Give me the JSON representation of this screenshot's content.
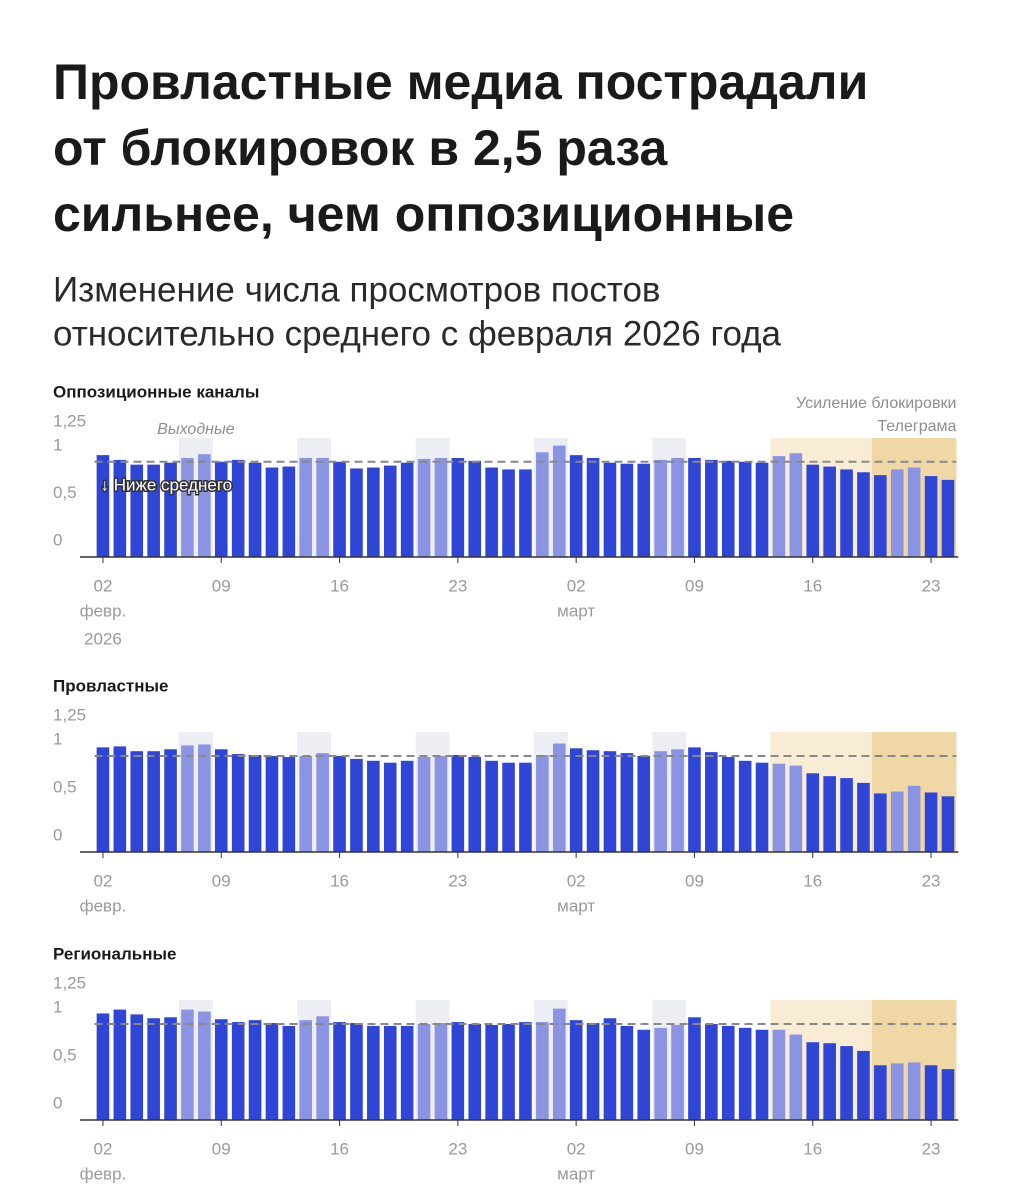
{
  "header": {
    "title_lines": [
      "Провластные медиа пострадали",
      "от блокировок в 2,5 раза",
      "сильнее, чем оппозиционные"
    ],
    "subtitle_lines": [
      "Изменение числа просмотров постов",
      "относительно среднего с февраля 2026 года"
    ]
  },
  "chart_data": [
    {
      "type": "bar",
      "title": "Оппозиционные каналы",
      "categories": [
        "02",
        null,
        null,
        null,
        null,
        null,
        null,
        "09",
        null,
        null,
        null,
        null,
        null,
        null,
        "16",
        null,
        null,
        null,
        null,
        null,
        null,
        "23",
        null,
        null,
        null,
        null,
        null,
        null,
        "02",
        null,
        null,
        null,
        null,
        null,
        null,
        "09",
        null,
        null,
        null,
        null,
        null,
        null,
        "16",
        null,
        null,
        null,
        null,
        null,
        null,
        "23",
        null
      ],
      "category_sublabels": [
        "февр.",
        null,
        null,
        null,
        null,
        null,
        null,
        null,
        null,
        null,
        null,
        null,
        null,
        null,
        null,
        null,
        null,
        null,
        null,
        null,
        null,
        null,
        null,
        null,
        null,
        null,
        null,
        null,
        "март",
        null,
        null,
        null,
        null,
        null,
        null,
        null,
        null,
        null,
        null,
        null,
        null,
        null,
        null,
        null,
        null,
        null,
        null,
        null,
        null,
        null,
        null
      ],
      "year_label": "2026",
      "values": [
        1.07,
        1.02,
        0.97,
        0.97,
        0.99,
        1.04,
        1.08,
        1.0,
        1.02,
        0.99,
        0.94,
        0.95,
        1.04,
        1.04,
        1.0,
        0.93,
        0.94,
        0.96,
        0.99,
        1.03,
        1.04,
        1.04,
        1.01,
        0.94,
        0.92,
        0.92,
        1.1,
        1.17,
        1.07,
        1.04,
        0.99,
        0.98,
        0.98,
        1.02,
        1.04,
        1.04,
        1.02,
        1.01,
        1.0,
        0.99,
        1.06,
        1.09,
        0.97,
        0.95,
        0.92,
        0.89,
        0.86,
        0.92,
        0.94,
        0.85,
        0.81
      ],
      "color": "#2f45d6",
      "weekend_color": "#8b94e3",
      "weekend_indices": [
        5,
        6,
        12,
        13,
        19,
        20,
        26,
        27,
        33,
        34,
        40,
        41,
        47,
        48
      ],
      "bands": [
        {
          "from": 5,
          "to": 6,
          "color": "#eceef4"
        },
        {
          "from": 12,
          "to": 13,
          "color": "#eceef4"
        },
        {
          "from": 19,
          "to": 20,
          "color": "#eceef4"
        },
        {
          "from": 26,
          "to": 27,
          "color": "#eceef4"
        },
        {
          "from": 33,
          "to": 34,
          "color": "#eceef4"
        },
        {
          "from": 40,
          "to": 50,
          "color": "#f8ecd4"
        },
        {
          "from": 46,
          "to": 50,
          "color": "#efd8a6"
        }
      ],
      "reference_line": 1,
      "ylim": [
        0,
        1.25
      ],
      "yticks": [
        0,
        {
          "value": 0.5,
          "label": "0,5"
        },
        1,
        {
          "value": 1.25,
          "label": "1,25"
        }
      ],
      "annotations": [
        "Выходные",
        [
          "Усиление блокировки",
          "Телеграма"
        ],
        "↓ Ниже среднего"
      ]
    },
    {
      "type": "bar",
      "title": "Провластные",
      "categories": [
        "02",
        null,
        null,
        null,
        null,
        null,
        null,
        "09",
        null,
        null,
        null,
        null,
        null,
        null,
        "16",
        null,
        null,
        null,
        null,
        null,
        null,
        "23",
        null,
        null,
        null,
        null,
        null,
        null,
        "02",
        null,
        null,
        null,
        null,
        null,
        null,
        "09",
        null,
        null,
        null,
        null,
        null,
        null,
        "16",
        null,
        null,
        null,
        null,
        null,
        null,
        "23",
        null
      ],
      "category_sublabels": [
        "февр.",
        null,
        null,
        null,
        null,
        null,
        null,
        null,
        null,
        null,
        null,
        null,
        null,
        null,
        null,
        null,
        null,
        null,
        null,
        null,
        null,
        null,
        null,
        null,
        null,
        null,
        null,
        null,
        "март",
        null,
        null,
        null,
        null,
        null,
        null,
        null,
        null,
        null,
        null,
        null,
        null,
        null,
        null,
        null,
        null,
        null,
        null,
        null,
        null,
        null,
        null
      ],
      "values": [
        1.09,
        1.1,
        1.05,
        1.05,
        1.07,
        1.11,
        1.12,
        1.07,
        1.02,
        1.01,
        1.0,
        0.99,
        1.0,
        1.03,
        1.0,
        0.97,
        0.95,
        0.93,
        0.95,
        0.99,
        1.0,
        1.01,
        0.99,
        0.95,
        0.93,
        0.93,
        1.01,
        1.13,
        1.08,
        1.06,
        1.05,
        1.03,
        1.0,
        1.05,
        1.07,
        1.09,
        1.04,
        0.99,
        0.95,
        0.93,
        0.92,
        0.9,
        0.82,
        0.79,
        0.77,
        0.72,
        0.61,
        0.63,
        0.69,
        0.62,
        0.58
      ],
      "color": "#2f45d6",
      "weekend_color": "#8b94e3",
      "weekend_indices": [
        5,
        6,
        12,
        13,
        19,
        20,
        26,
        27,
        33,
        34,
        40,
        41,
        47,
        48
      ],
      "bands": [
        {
          "from": 5,
          "to": 6,
          "color": "#eceef4"
        },
        {
          "from": 12,
          "to": 13,
          "color": "#eceef4"
        },
        {
          "from": 19,
          "to": 20,
          "color": "#eceef4"
        },
        {
          "from": 26,
          "to": 27,
          "color": "#eceef4"
        },
        {
          "from": 33,
          "to": 34,
          "color": "#eceef4"
        },
        {
          "from": 40,
          "to": 50,
          "color": "#f8ecd4"
        },
        {
          "from": 46,
          "to": 50,
          "color": "#efd8a6"
        }
      ],
      "reference_line": 1,
      "ylim": [
        0,
        1.25
      ],
      "yticks": [
        0,
        {
          "value": 0.5,
          "label": "0,5"
        },
        1,
        {
          "value": 1.25,
          "label": "1,25"
        }
      ]
    },
    {
      "type": "bar",
      "title": "Региональные",
      "categories": [
        "02",
        null,
        null,
        null,
        null,
        null,
        null,
        "09",
        null,
        null,
        null,
        null,
        null,
        null,
        "16",
        null,
        null,
        null,
        null,
        null,
        null,
        "23",
        null,
        null,
        null,
        null,
        null,
        null,
        "02",
        null,
        null,
        null,
        null,
        null,
        null,
        "09",
        null,
        null,
        null,
        null,
        null,
        null,
        "16",
        null,
        null,
        null,
        null,
        null,
        null,
        "23",
        null
      ],
      "category_sublabels": [
        "февр.",
        null,
        null,
        null,
        null,
        null,
        null,
        null,
        null,
        null,
        null,
        null,
        null,
        null,
        null,
        null,
        null,
        null,
        null,
        null,
        null,
        null,
        null,
        null,
        null,
        null,
        null,
        null,
        "март",
        null,
        null,
        null,
        null,
        null,
        null,
        null,
        null,
        null,
        null,
        null,
        null,
        null,
        null,
        null,
        null,
        null,
        null,
        null,
        null,
        null,
        null
      ],
      "values": [
        1.11,
        1.15,
        1.1,
        1.06,
        1.07,
        1.15,
        1.13,
        1.05,
        1.02,
        1.04,
        1.01,
        0.98,
        1.04,
        1.08,
        1.02,
        1.01,
        0.98,
        0.98,
        0.98,
        1.0,
        1.01,
        1.02,
        1.0,
        0.99,
        1.0,
        1.02,
        1.02,
        1.16,
        1.04,
        1.01,
        1.06,
        0.98,
        0.94,
        0.96,
        0.99,
        1.07,
        1.0,
        0.98,
        0.96,
        0.94,
        0.94,
        0.89,
        0.81,
        0.8,
        0.77,
        0.72,
        0.57,
        0.59,
        0.6,
        0.57,
        0.53
      ],
      "color": "#2f45d6",
      "weekend_color": "#8b94e3",
      "weekend_indices": [
        5,
        6,
        12,
        13,
        19,
        20,
        26,
        27,
        33,
        34,
        40,
        41,
        47,
        48
      ],
      "bands": [
        {
          "from": 5,
          "to": 6,
          "color": "#eceef4"
        },
        {
          "from": 12,
          "to": 13,
          "color": "#eceef4"
        },
        {
          "from": 19,
          "to": 20,
          "color": "#eceef4"
        },
        {
          "from": 26,
          "to": 27,
          "color": "#eceef4"
        },
        {
          "from": 33,
          "to": 34,
          "color": "#eceef4"
        },
        {
          "from": 40,
          "to": 50,
          "color": "#f8ecd4"
        },
        {
          "from": 46,
          "to": 50,
          "color": "#efd8a6"
        }
      ],
      "reference_line": 1,
      "ylim": [
        0,
        1.25
      ],
      "yticks": [
        0,
        {
          "value": 0.5,
          "label": "0,5"
        },
        1,
        {
          "value": 1.25,
          "label": "1,25"
        }
      ]
    }
  ]
}
